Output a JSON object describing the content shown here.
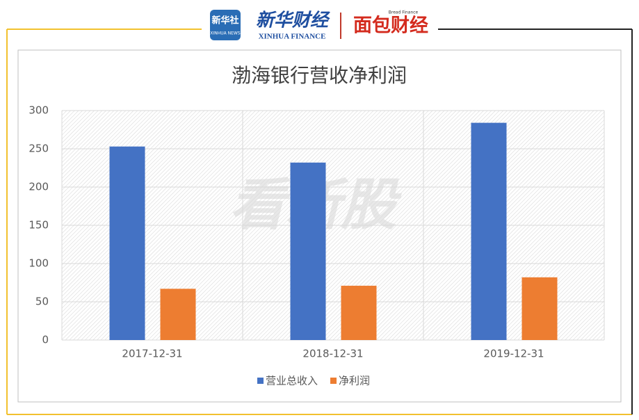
{
  "header": {
    "xinhua_logo": "新华社",
    "xinhua_logo_sub": "XINHUA NEWS",
    "xinhua_finance": "新华财经",
    "xinhua_finance_en": "XINHUA FINANCE",
    "bread_finance": "面包财经",
    "bread_finance_en": "Bread Finance"
  },
  "watermark": "看新股",
  "chart_data": {
    "type": "bar",
    "title": "渤海银行营收净利润",
    "categories": [
      "2017-12-31",
      "2018-12-31",
      "2019-12-31"
    ],
    "series": [
      {
        "name": "营业总收入",
        "color": "#4472c4",
        "values": [
          253,
          232,
          284
        ]
      },
      {
        "name": "净利润",
        "color": "#ed7d31",
        "values": [
          67,
          71,
          82
        ]
      }
    ],
    "ylim": [
      0,
      300
    ],
    "yticks": [
      0,
      50,
      100,
      150,
      200,
      250,
      300
    ],
    "grid": true,
    "legend": "bottom"
  }
}
